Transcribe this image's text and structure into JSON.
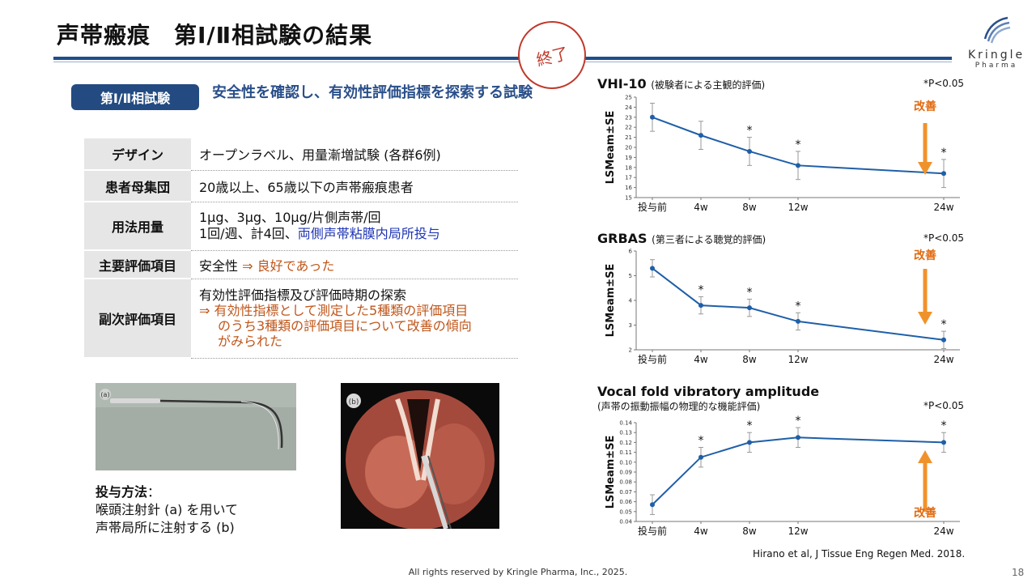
{
  "header": {
    "title": "声帯瘢痕　第Ⅰ/Ⅱ相試験の結果",
    "stamp": "終了",
    "logo_name": "Kringle",
    "logo_sub": "Pharma"
  },
  "intro": {
    "pill": "第Ⅰ/Ⅱ相試験",
    "headline": "安全性を確認し、有効性評価指標を探索する試験"
  },
  "spec_table": {
    "rows": [
      {
        "label": "デザイン",
        "value": "オープンラベル、用量漸増試験 (各群6例)"
      },
      {
        "label": "患者母集団",
        "value": "20歳以上、65歳以下の声帯瘢痕患者"
      },
      {
        "label": "用法用量",
        "line1": "1μg、3μg、10μg/片側声帯/回",
        "line2a": "1回/週、計4回、",
        "line2b": "両側声帯粘膜内局所投与"
      },
      {
        "label": "主要評価項目",
        "value_a": "安全性 ",
        "value_b": "⇒ 良好であった"
      },
      {
        "label": "副次評価項目",
        "line1": "有効性評価指標及び評価時期の探索",
        "line2": "⇒ 有効性指標として測定した5種類の評価項目",
        "line3": "のうち3種類の評価項目について改善の傾向",
        "line4": "がみられた"
      }
    ]
  },
  "method": {
    "label": "投与方法",
    "colon": "：",
    "line1": "喉頭注射針 (a) を用いて",
    "line2": "声帯局所に注射する (b)",
    "photo_a_label": "(a)",
    "photo_b_label": "(b)"
  },
  "colors": {
    "line": "#1f5fa8",
    "arrow": "#f0922b",
    "arrow_label": "#e06a10"
  },
  "chart_data": [
    {
      "type": "line",
      "title": "VHI-10",
      "subtitle": "(被験者による主観的評価)",
      "note": "*P<0.05",
      "ylabel": "LSMeam±SE",
      "x": [
        "投与前",
        "4w",
        "8w",
        "12w",
        "24w"
      ],
      "x_pos": [
        0,
        4,
        8,
        12,
        24
      ],
      "values": [
        23.0,
        21.2,
        19.6,
        18.2,
        17.4
      ],
      "errors": [
        1.4,
        1.4,
        1.4,
        1.4,
        1.4
      ],
      "significant": [
        false,
        false,
        true,
        true,
        true
      ],
      "ylim": [
        15,
        25
      ],
      "yticks": [
        "15",
        "16",
        "17",
        "18",
        "19",
        "20",
        "21",
        "22",
        "23",
        "24",
        "25"
      ],
      "annotation": "改善",
      "arrow_direction": "down"
    },
    {
      "type": "line",
      "title": "GRBAS",
      "subtitle": "(第三者による聴覚的評価)",
      "note": "*P<0.05",
      "ylabel": "LSMeam±SE",
      "x": [
        "投与前",
        "4w",
        "8w",
        "12w",
        "24w"
      ],
      "x_pos": [
        0,
        4,
        8,
        12,
        24
      ],
      "values": [
        5.3,
        3.8,
        3.7,
        3.15,
        2.4
      ],
      "errors": [
        0.35,
        0.35,
        0.35,
        0.35,
        0.35
      ],
      "significant": [
        false,
        true,
        true,
        true,
        true
      ],
      "ylim": [
        2,
        6
      ],
      "yticks": [
        "2",
        "3",
        "4",
        "5",
        "6"
      ],
      "annotation": "改善",
      "arrow_direction": "down"
    },
    {
      "type": "line",
      "title": "Vocal fold vibratory amplitude",
      "subtitle": "(声帯の振動振幅の物理的な機能評価)",
      "note": "*P<0.05",
      "ylabel": "LSMeam±SE",
      "x": [
        "投与前",
        "4w",
        "8w",
        "12w",
        "24w"
      ],
      "x_pos": [
        0,
        4,
        8,
        12,
        24
      ],
      "values": [
        0.057,
        0.105,
        0.12,
        0.125,
        0.12
      ],
      "errors": [
        0.01,
        0.01,
        0.01,
        0.01,
        0.01
      ],
      "significant": [
        false,
        true,
        true,
        true,
        true
      ],
      "ylim": [
        0.04,
        0.14
      ],
      "yticks": [
        "0.04",
        "0.05",
        "0.06",
        "0.07",
        "0.08",
        "0.09",
        "0.10",
        "0.11",
        "0.12",
        "0.13",
        "0.14"
      ],
      "annotation": "改善",
      "arrow_direction": "up"
    }
  ],
  "citation": "Hirano et al, J Tissue Eng Regen Med. 2018.",
  "footer": "All rights reserved by Kringle Pharma, Inc., 2025.",
  "page_number": "18"
}
